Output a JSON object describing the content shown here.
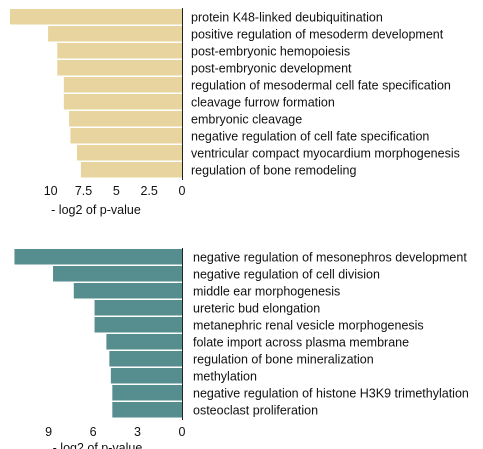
{
  "chart_data": [
    {
      "type": "bar",
      "orientation": "horizontal",
      "x_axis_reversed": true,
      "color": "#e8d49e",
      "categories": [
        "protein K48-linked deubiquitination",
        "positive regulation of mesoderm development",
        "post-embryonic hemopoiesis",
        "post-embryonic development",
        "regulation of mesodermal cell fate specification",
        "cleavage furrow formation",
        "embryonic cleavage",
        "negative regulation of cell fate specification",
        "ventricular compact myocardium morphogenesis",
        "regulation of bone remodeling"
      ],
      "values": [
        13.1,
        10.2,
        9.5,
        9.5,
        9.0,
        9.0,
        8.6,
        8.5,
        8.0,
        7.7
      ],
      "xlim": [
        0,
        13.1
      ],
      "xticks": [
        10,
        7.5,
        5,
        2.5,
        0
      ],
      "xtick_labels": [
        "10",
        "7.5",
        "5",
        "2.5",
        "0"
      ],
      "xlabel": "- log2 of p-value"
    },
    {
      "type": "bar",
      "orientation": "horizontal",
      "x_axis_reversed": true,
      "color": "#568d8f",
      "categories": [
        "negative regulation of mesonephros development",
        "negative regulation of cell division",
        "middle ear morphogenesis",
        "ureteric bud elongation",
        "metanephric renal vesicle morphogenesis",
        "folate import across plasma membrane",
        "regulation of bone mineralization",
        "methylation",
        "negative regulation of histone H3K9 trimethylation",
        "osteoclast proliferation"
      ],
      "values": [
        11.3,
        8.7,
        7.3,
        5.9,
        5.9,
        5.1,
        4.9,
        4.8,
        4.7,
        4.7
      ],
      "xlim": [
        0,
        11.4
      ],
      "xticks": [
        9,
        6,
        3,
        0
      ],
      "xtick_labels": [
        "9",
        "6",
        "3",
        "0"
      ],
      "xlabel": "- log2 of p-value"
    }
  ]
}
